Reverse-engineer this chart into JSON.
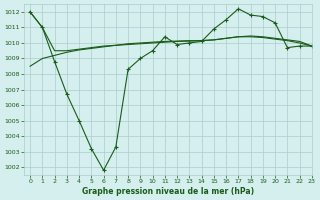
{
  "title": "Graphe pression niveau de la mer (hPa)",
  "bg_color": "#d5eeee",
  "grid_color": "#aacccc",
  "line_color": "#1a5c1a",
  "xlim": [
    -0.5,
    23
  ],
  "ylim": [
    1001.5,
    1012.5
  ],
  "yticks": [
    1002,
    1003,
    1004,
    1005,
    1006,
    1007,
    1008,
    1009,
    1010,
    1011,
    1012
  ],
  "xticks": [
    0,
    1,
    2,
    3,
    4,
    5,
    6,
    7,
    8,
    9,
    10,
    11,
    12,
    13,
    14,
    15,
    16,
    17,
    18,
    19,
    20,
    21,
    22,
    23
  ],
  "line1_x": [
    0,
    1,
    2,
    3,
    4,
    5,
    6,
    7,
    8,
    9,
    10,
    11,
    12,
    13,
    14,
    15,
    16,
    17,
    18,
    19,
    20,
    21,
    22,
    23
  ],
  "line1_y": [
    1012.0,
    1011.0,
    1008.8,
    1006.7,
    1005.0,
    1003.2,
    1001.8,
    1003.3,
    1008.3,
    1009.0,
    1009.5,
    1010.4,
    1009.9,
    1010.0,
    1010.1,
    1010.9,
    1011.5,
    1012.2,
    1011.8,
    1011.7,
    1011.3,
    1009.7,
    1009.8,
    1009.8
  ],
  "line2_x": [
    0,
    1,
    2,
    3,
    4,
    5,
    6,
    7,
    8,
    9,
    10,
    11,
    12,
    13,
    14,
    15,
    16,
    17,
    18,
    19,
    20,
    21,
    22,
    23
  ],
  "line2_y": [
    1012.0,
    1011.0,
    1009.5,
    1009.5,
    1009.6,
    1009.7,
    1009.8,
    1009.85,
    1009.9,
    1009.95,
    1010.0,
    1010.05,
    1010.1,
    1010.12,
    1010.15,
    1010.2,
    1010.3,
    1010.4,
    1010.4,
    1010.35,
    1010.25,
    1010.15,
    1010.0,
    1009.8
  ],
  "line3_x": [
    0,
    1,
    2,
    3,
    4,
    5,
    6,
    7,
    8,
    9,
    10,
    11,
    12,
    13,
    14,
    15,
    16,
    17,
    18,
    19,
    20,
    21,
    22,
    23
  ],
  "line3_y": [
    1008.5,
    1009.0,
    1009.2,
    1009.4,
    1009.55,
    1009.65,
    1009.75,
    1009.85,
    1009.95,
    1010.0,
    1010.05,
    1010.1,
    1010.12,
    1010.15,
    1010.15,
    1010.2,
    1010.3,
    1010.4,
    1010.45,
    1010.4,
    1010.3,
    1010.2,
    1010.1,
    1009.8
  ]
}
